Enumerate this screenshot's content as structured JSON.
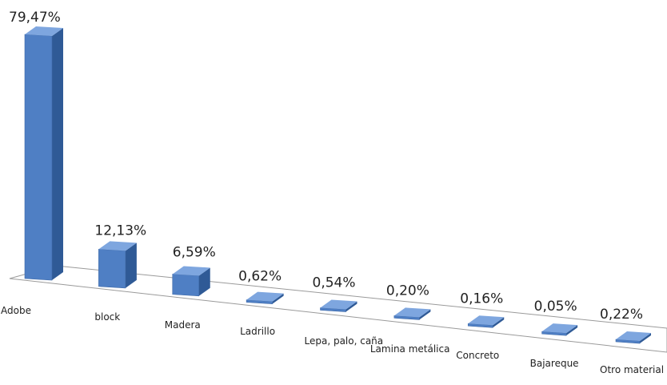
{
  "chart_data": {
    "type": "bar",
    "style": "3d-perspective-column",
    "categories": [
      "Adobe",
      "block",
      "Madera",
      "Ladrillo",
      "Lepa, palo, caña",
      "Lamina metálica",
      "Concreto",
      "Bajareque",
      "Otro material"
    ],
    "values": [
      79.47,
      12.13,
      6.59,
      0.62,
      0.54,
      0.2,
      0.16,
      0.05,
      0.22
    ],
    "value_labels": [
      "79,47%",
      "12,13%",
      "6,59%",
      "0,62%",
      "0,54%",
      "0,20%",
      "0,16%",
      "0,05%",
      "0,22%"
    ],
    "title": "",
    "xlabel": "",
    "ylabel": "",
    "grid": false,
    "legend": "none",
    "colors": {
      "bar_front": "#4f7fc4",
      "bar_side": "#2f5a96",
      "bar_top": "#7ea6df",
      "floor_line": "#9a9a9a"
    }
  }
}
